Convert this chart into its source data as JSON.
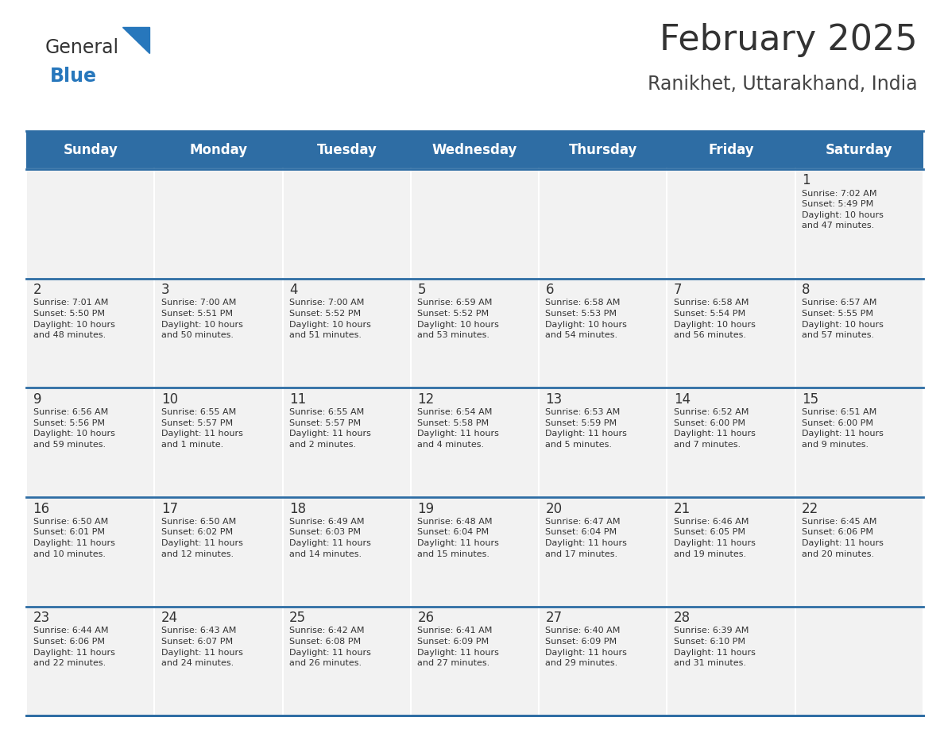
{
  "title": "February 2025",
  "subtitle": "Ranikhet, Uttarakhand, India",
  "days_of_week": [
    "Sunday",
    "Monday",
    "Tuesday",
    "Wednesday",
    "Thursday",
    "Friday",
    "Saturday"
  ],
  "header_bg": "#2E6DA4",
  "header_text": "#FFFFFF",
  "cell_bg": "#F2F2F2",
  "divider_color": "#2E6DA4",
  "text_color": "#333333",
  "logo_blue_color": "#2777BC",
  "calendar_data": [
    [
      {
        "day": null,
        "info": null
      },
      {
        "day": null,
        "info": null
      },
      {
        "day": null,
        "info": null
      },
      {
        "day": null,
        "info": null
      },
      {
        "day": null,
        "info": null
      },
      {
        "day": null,
        "info": null
      },
      {
        "day": 1,
        "info": "Sunrise: 7:02 AM\nSunset: 5:49 PM\nDaylight: 10 hours\nand 47 minutes."
      }
    ],
    [
      {
        "day": 2,
        "info": "Sunrise: 7:01 AM\nSunset: 5:50 PM\nDaylight: 10 hours\nand 48 minutes."
      },
      {
        "day": 3,
        "info": "Sunrise: 7:00 AM\nSunset: 5:51 PM\nDaylight: 10 hours\nand 50 minutes."
      },
      {
        "day": 4,
        "info": "Sunrise: 7:00 AM\nSunset: 5:52 PM\nDaylight: 10 hours\nand 51 minutes."
      },
      {
        "day": 5,
        "info": "Sunrise: 6:59 AM\nSunset: 5:52 PM\nDaylight: 10 hours\nand 53 minutes."
      },
      {
        "day": 6,
        "info": "Sunrise: 6:58 AM\nSunset: 5:53 PM\nDaylight: 10 hours\nand 54 minutes."
      },
      {
        "day": 7,
        "info": "Sunrise: 6:58 AM\nSunset: 5:54 PM\nDaylight: 10 hours\nand 56 minutes."
      },
      {
        "day": 8,
        "info": "Sunrise: 6:57 AM\nSunset: 5:55 PM\nDaylight: 10 hours\nand 57 minutes."
      }
    ],
    [
      {
        "day": 9,
        "info": "Sunrise: 6:56 AM\nSunset: 5:56 PM\nDaylight: 10 hours\nand 59 minutes."
      },
      {
        "day": 10,
        "info": "Sunrise: 6:55 AM\nSunset: 5:57 PM\nDaylight: 11 hours\nand 1 minute."
      },
      {
        "day": 11,
        "info": "Sunrise: 6:55 AM\nSunset: 5:57 PM\nDaylight: 11 hours\nand 2 minutes."
      },
      {
        "day": 12,
        "info": "Sunrise: 6:54 AM\nSunset: 5:58 PM\nDaylight: 11 hours\nand 4 minutes."
      },
      {
        "day": 13,
        "info": "Sunrise: 6:53 AM\nSunset: 5:59 PM\nDaylight: 11 hours\nand 5 minutes."
      },
      {
        "day": 14,
        "info": "Sunrise: 6:52 AM\nSunset: 6:00 PM\nDaylight: 11 hours\nand 7 minutes."
      },
      {
        "day": 15,
        "info": "Sunrise: 6:51 AM\nSunset: 6:00 PM\nDaylight: 11 hours\nand 9 minutes."
      }
    ],
    [
      {
        "day": 16,
        "info": "Sunrise: 6:50 AM\nSunset: 6:01 PM\nDaylight: 11 hours\nand 10 minutes."
      },
      {
        "day": 17,
        "info": "Sunrise: 6:50 AM\nSunset: 6:02 PM\nDaylight: 11 hours\nand 12 minutes."
      },
      {
        "day": 18,
        "info": "Sunrise: 6:49 AM\nSunset: 6:03 PM\nDaylight: 11 hours\nand 14 minutes."
      },
      {
        "day": 19,
        "info": "Sunrise: 6:48 AM\nSunset: 6:04 PM\nDaylight: 11 hours\nand 15 minutes."
      },
      {
        "day": 20,
        "info": "Sunrise: 6:47 AM\nSunset: 6:04 PM\nDaylight: 11 hours\nand 17 minutes."
      },
      {
        "day": 21,
        "info": "Sunrise: 6:46 AM\nSunset: 6:05 PM\nDaylight: 11 hours\nand 19 minutes."
      },
      {
        "day": 22,
        "info": "Sunrise: 6:45 AM\nSunset: 6:06 PM\nDaylight: 11 hours\nand 20 minutes."
      }
    ],
    [
      {
        "day": 23,
        "info": "Sunrise: 6:44 AM\nSunset: 6:06 PM\nDaylight: 11 hours\nand 22 minutes."
      },
      {
        "day": 24,
        "info": "Sunrise: 6:43 AM\nSunset: 6:07 PM\nDaylight: 11 hours\nand 24 minutes."
      },
      {
        "day": 25,
        "info": "Sunrise: 6:42 AM\nSunset: 6:08 PM\nDaylight: 11 hours\nand 26 minutes."
      },
      {
        "day": 26,
        "info": "Sunrise: 6:41 AM\nSunset: 6:09 PM\nDaylight: 11 hours\nand 27 minutes."
      },
      {
        "day": 27,
        "info": "Sunrise: 6:40 AM\nSunset: 6:09 PM\nDaylight: 11 hours\nand 29 minutes."
      },
      {
        "day": 28,
        "info": "Sunrise: 6:39 AM\nSunset: 6:10 PM\nDaylight: 11 hours\nand 31 minutes."
      },
      {
        "day": null,
        "info": null
      }
    ]
  ],
  "figsize": [
    11.88,
    9.18
  ],
  "dpi": 100
}
